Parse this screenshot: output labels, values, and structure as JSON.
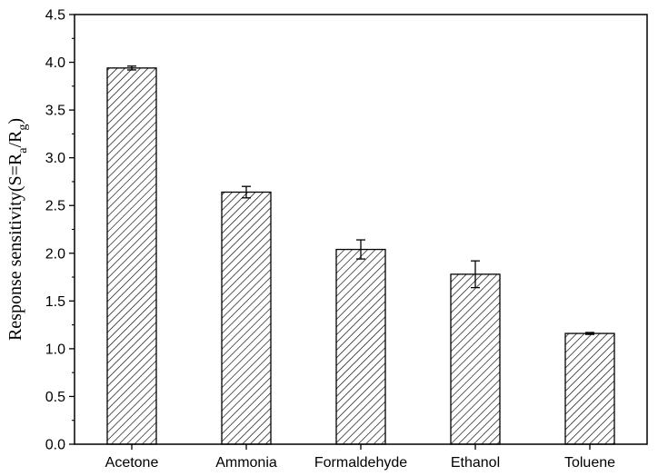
{
  "chart_data": {
    "type": "bar",
    "categories": [
      "Acetone",
      "Ammonia",
      "Formaldehyde",
      "Ethanol",
      "Toluene"
    ],
    "values": [
      3.94,
      2.64,
      2.04,
      1.78,
      1.16
    ],
    "errors": [
      0.02,
      0.06,
      0.1,
      0.14,
      0.01
    ],
    "ylabel": {
      "main": "Response sensitivity(S=R",
      "sub_a": "a",
      "mid": "/R",
      "sub_g": "g",
      "end": ")"
    },
    "ylim": [
      0,
      4.5
    ],
    "yticks": [
      "0.0",
      "0.5",
      "1.0",
      "1.5",
      "2.0",
      "2.5",
      "3.0",
      "3.5",
      "4.0",
      "4.5"
    ],
    "bar_fill": "hatched",
    "grid": false
  }
}
